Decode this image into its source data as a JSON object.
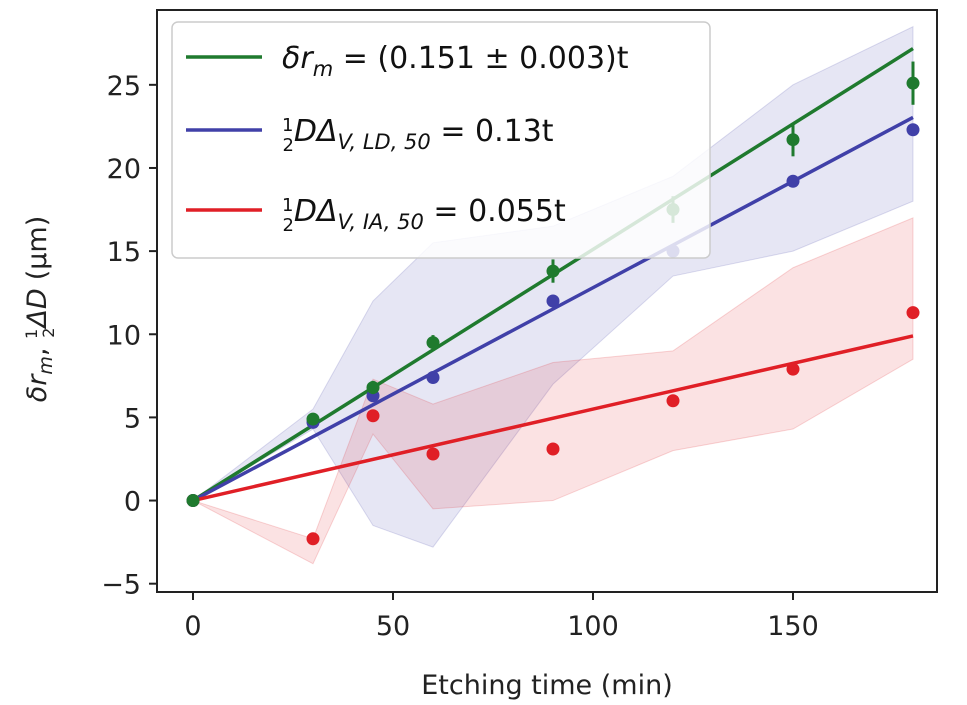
{
  "chart_data": {
    "type": "scatter",
    "xlabel": "Etching time (min)",
    "ylabel_parts": {
      "base": "δr",
      "sub": "m",
      "sep": ", ",
      "frac_num": "1",
      "frac_den": "2",
      "tail": "ΔD",
      "unit": "(μm)"
    },
    "xlim": [
      -9,
      186
    ],
    "ylim": [
      -5.5,
      29.5
    ],
    "xticks": [
      0,
      50,
      100,
      150
    ],
    "yticks": [
      -5,
      0,
      5,
      10,
      15,
      20,
      25
    ],
    "xtick_labels": [
      "0",
      "50",
      "100",
      "150"
    ],
    "ytick_labels": [
      "−5",
      "0",
      "5",
      "10",
      "15",
      "20",
      "25"
    ],
    "legend_position": "upper-left",
    "series": [
      {
        "key": "green",
        "color": "#1f7a2e",
        "legend": {
          "main": "δr",
          "sub": "m",
          "tail": " = (0.151 ± 0.003)t"
        },
        "fit_slope": 0.151,
        "points": [
          {
            "x": 0,
            "y": 0,
            "err": 0.25
          },
          {
            "x": 30,
            "y": 4.9,
            "err": 0.35
          },
          {
            "x": 45,
            "y": 6.8,
            "err": 0.4
          },
          {
            "x": 60,
            "y": 9.5,
            "err": 0.45
          },
          {
            "x": 90,
            "y": 13.8,
            "err": 0.7
          },
          {
            "x": 120,
            "y": 17.5,
            "err": 0.8
          },
          {
            "x": 150,
            "y": 21.7,
            "err": 1.0
          },
          {
            "x": 180,
            "y": 25.1,
            "err": 1.3
          }
        ]
      },
      {
        "key": "blue",
        "color": "#4040a8",
        "legend": {
          "frac_num": "1",
          "frac_den": "2",
          "main": "DΔ",
          "sub": "V, LD, 50",
          "tail": " = 0.13t"
        },
        "fit_slope": 0.128,
        "band_lower": [
          0,
          4.3,
          -1.5,
          -2.8,
          7.0,
          13.5,
          15.0,
          18.0
        ],
        "band_upper": [
          0,
          5.5,
          12.0,
          15.5,
          16.5,
          19.5,
          25.0,
          28.5
        ],
        "band_x": [
          0,
          30,
          45,
          60,
          90,
          120,
          150,
          180
        ],
        "points": [
          {
            "x": 0,
            "y": 0
          },
          {
            "x": 30,
            "y": 4.7
          },
          {
            "x": 45,
            "y": 6.3
          },
          {
            "x": 60,
            "y": 7.4
          },
          {
            "x": 90,
            "y": 12.0
          },
          {
            "x": 120,
            "y": 15.0
          },
          {
            "x": 150,
            "y": 19.2
          },
          {
            "x": 180,
            "y": 22.3
          }
        ]
      },
      {
        "key": "red",
        "color": "#e01f26",
        "legend": {
          "frac_num": "1",
          "frac_den": "2",
          "main": "DΔ",
          "sub": "V, IA, 50",
          "tail": " = 0.055t"
        },
        "fit_slope": 0.055,
        "band_lower": [
          0,
          -3.8,
          4.0,
          -0.5,
          0.0,
          3.0,
          4.3,
          8.5
        ],
        "band_upper": [
          0,
          -2.3,
          7.3,
          5.8,
          8.3,
          9.0,
          14.0,
          17.0
        ],
        "band_x": [
          0,
          30,
          45,
          60,
          90,
          120,
          150,
          180
        ],
        "points": [
          {
            "x": 0,
            "y": 0
          },
          {
            "x": 30,
            "y": -2.3
          },
          {
            "x": 45,
            "y": 5.1
          },
          {
            "x": 60,
            "y": 2.8
          },
          {
            "x": 90,
            "y": 3.1
          },
          {
            "x": 120,
            "y": 6.0
          },
          {
            "x": 150,
            "y": 7.9
          },
          {
            "x": 180,
            "y": 11.3
          }
        ]
      }
    ]
  }
}
